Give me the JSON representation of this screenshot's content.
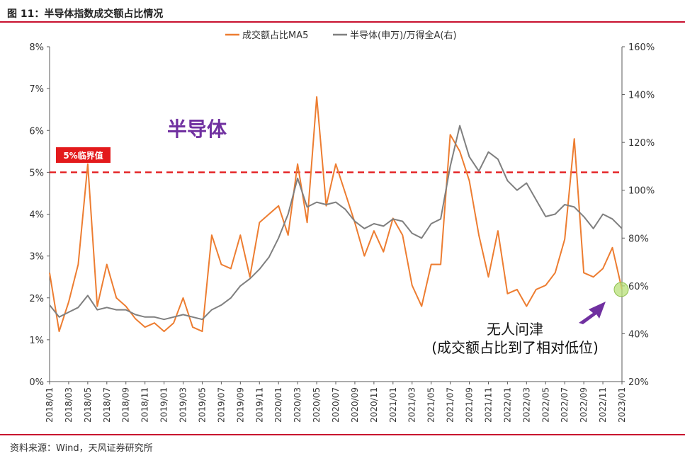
{
  "figure": {
    "title": "图 11：半导体指数成交额占比情况",
    "source": "资料来源：Wind，天风证券研究所"
  },
  "colors": {
    "orange": "#ed7d31",
    "gray": "#7f7f7f",
    "threshold": "#e31a1c",
    "label_bg": "#e31a1c",
    "purple": "#7030a0",
    "highlight": "#b8e07a",
    "accent_rule": "#c8102e"
  },
  "chart_data": {
    "type": "line",
    "legend_position": "top-center",
    "grid": false,
    "x_start": "2018-01",
    "x_end": "2023-01",
    "x_ticks": [
      "2018/01",
      "2018/03",
      "2018/05",
      "2018/07",
      "2018/09",
      "2018/11",
      "2019/01",
      "2019/03",
      "2019/05",
      "2019/07",
      "2019/09",
      "2019/11",
      "2020/01",
      "2020/03",
      "2020/05",
      "2020/07",
      "2020/09",
      "2020/11",
      "2021/01",
      "2021/03",
      "2021/05",
      "2021/07",
      "2021/09",
      "2021/11",
      "2022/01",
      "2022/03",
      "2022/05",
      "2022/07",
      "2022/09",
      "2022/11",
      "2023/01"
    ],
    "y_left": {
      "min": 0,
      "max": 8,
      "ticks": [
        "0%",
        "1%",
        "2%",
        "3%",
        "4%",
        "5%",
        "6%",
        "7%",
        "8%"
      ]
    },
    "y_right": {
      "min": 20,
      "max": 160,
      "ticks": [
        "20%",
        "40%",
        "60%",
        "80%",
        "100%",
        "120%",
        "140%",
        "160%"
      ]
    },
    "threshold": {
      "value": 5,
      "axis": "left",
      "label": "5%临界值"
    },
    "series": [
      {
        "name": "成交额占比MA5",
        "axis": "left",
        "x": [
          "2018-01",
          "2018-02",
          "2018-03",
          "2018-04",
          "2018-05",
          "2018-06",
          "2018-07",
          "2018-08",
          "2018-09",
          "2018-10",
          "2018-11",
          "2018-12",
          "2019-01",
          "2019-02",
          "2019-03",
          "2019-04",
          "2019-05",
          "2019-06",
          "2019-07",
          "2019-08",
          "2019-09",
          "2019-10",
          "2019-11",
          "2019-12",
          "2020-01",
          "2020-02",
          "2020-03",
          "2020-04",
          "2020-05",
          "2020-06",
          "2020-07",
          "2020-08",
          "2020-09",
          "2020-10",
          "2020-11",
          "2020-12",
          "2021-01",
          "2021-02",
          "2021-03",
          "2021-04",
          "2021-05",
          "2021-06",
          "2021-07",
          "2021-08",
          "2021-09",
          "2021-10",
          "2021-11",
          "2021-12",
          "2022-01",
          "2022-02",
          "2022-03",
          "2022-04",
          "2022-05",
          "2022-06",
          "2022-07",
          "2022-08",
          "2022-09",
          "2022-10",
          "2022-11",
          "2022-12",
          "2023-01"
        ],
        "y": [
          2.6,
          1.2,
          1.9,
          2.8,
          5.2,
          1.8,
          2.8,
          2.0,
          1.8,
          1.5,
          1.3,
          1.4,
          1.2,
          1.4,
          2.0,
          1.3,
          1.2,
          3.5,
          2.8,
          2.7,
          3.5,
          2.5,
          3.8,
          4.0,
          4.2,
          3.5,
          5.2,
          3.8,
          6.8,
          4.2,
          5.2,
          4.5,
          3.8,
          3.0,
          3.6,
          3.1,
          3.9,
          3.5,
          2.3,
          1.8,
          2.8,
          2.8,
          5.9,
          5.5,
          4.8,
          3.5,
          2.5,
          3.6,
          2.1,
          2.2,
          1.8,
          2.2,
          2.3,
          2.6,
          3.4,
          5.8,
          2.6,
          2.5,
          2.7,
          3.2,
          2.2
        ]
      },
      {
        "name": "半导体(申万)/万得全A(右)",
        "axis": "right",
        "x": [
          "2018-01",
          "2018-02",
          "2018-03",
          "2018-04",
          "2018-05",
          "2018-06",
          "2018-07",
          "2018-08",
          "2018-09",
          "2018-10",
          "2018-11",
          "2018-12",
          "2019-01",
          "2019-02",
          "2019-03",
          "2019-04",
          "2019-05",
          "2019-06",
          "2019-07",
          "2019-08",
          "2019-09",
          "2019-10",
          "2019-11",
          "2019-12",
          "2020-01",
          "2020-02",
          "2020-03",
          "2020-04",
          "2020-05",
          "2020-06",
          "2020-07",
          "2020-08",
          "2020-09",
          "2020-10",
          "2020-11",
          "2020-12",
          "2021-01",
          "2021-02",
          "2021-03",
          "2021-04",
          "2021-05",
          "2021-06",
          "2021-07",
          "2021-08",
          "2021-09",
          "2021-10",
          "2021-11",
          "2021-12",
          "2022-01",
          "2022-02",
          "2022-03",
          "2022-04",
          "2022-05",
          "2022-06",
          "2022-07",
          "2022-08",
          "2022-09",
          "2022-10",
          "2022-11",
          "2022-12",
          "2023-01"
        ],
        "y": [
          52,
          47,
          49,
          51,
          56,
          50,
          51,
          50,
          50,
          48,
          47,
          47,
          46,
          47,
          48,
          47,
          46,
          50,
          52,
          55,
          60,
          63,
          67,
          72,
          80,
          90,
          105,
          93,
          95,
          94,
          95,
          92,
          87,
          84,
          86,
          85,
          88,
          87,
          82,
          80,
          86,
          88,
          110,
          127,
          114,
          108,
          116,
          113,
          104,
          100,
          103,
          96,
          89,
          90,
          94,
          93,
          89,
          84,
          90,
          88,
          84
        ]
      }
    ],
    "annotations": [
      {
        "text": "半导体"
      },
      {
        "text": "无人问津"
      },
      {
        "text": "(成交额占比到了相对低位)"
      }
    ]
  }
}
